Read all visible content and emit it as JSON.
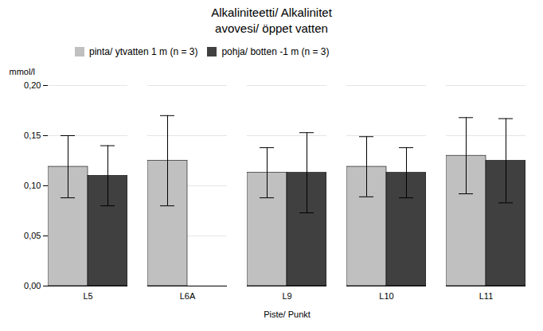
{
  "chart_data": {
    "type": "bar",
    "title": "Alkaliniteetti/ Alkalinitet",
    "subtitle": "avovesi/  öppet vatten",
    "x_label": "Piste/ Punkt",
    "y_label": "mmol/l",
    "categories": [
      "L5",
      "L6A",
      "L9",
      "L10",
      "L11"
    ],
    "series": [
      {
        "name": "pinta/ ytvatten  1 m  (n = 3)",
        "color": "#c0c0c0",
        "values": [
          0.119,
          0.125,
          0.113,
          0.119,
          0.13
        ],
        "errors": [
          0.031,
          0.045,
          0.025,
          0.03,
          0.038
        ]
      },
      {
        "name": "pohja/ botten -1 m  (n = 3)",
        "color": "#404040",
        "values": [
          0.11,
          null,
          0.113,
          0.113,
          0.125
        ],
        "errors": [
          0.03,
          null,
          0.04,
          0.025,
          0.042
        ]
      }
    ],
    "ylim": [
      0.0,
      0.2
    ],
    "yticks": [
      {
        "value": 0.0,
        "label": "0,00"
      },
      {
        "value": 0.05,
        "label": "0,05"
      },
      {
        "value": 0.1,
        "label": "0,10"
      },
      {
        "value": 0.15,
        "label": "0,15"
      },
      {
        "value": 0.2,
        "label": "0,20"
      }
    ],
    "grid": true,
    "legend": "top"
  }
}
